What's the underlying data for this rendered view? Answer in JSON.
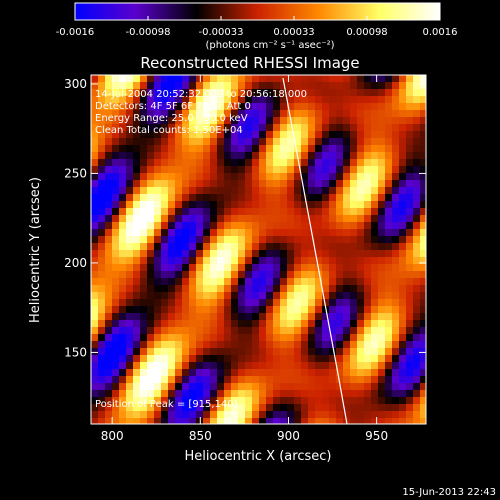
{
  "colorbar": {
    "ticks": [
      "-0.0016",
      "-0.00098",
      "-0.00033",
      "0.00033",
      "0.00098",
      "0.0016"
    ],
    "units_label": "(photons cm⁻² s⁻¹ asec⁻²)",
    "min_value": -0.0016,
    "max_value": 0.0016,
    "colormap": [
      "#0000ff",
      "#5a00cc",
      "#000000",
      "#cc2200",
      "#ff8800",
      "#ffff66",
      "#ffffff"
    ]
  },
  "plot": {
    "title": "Reconstructed RHESSI Image",
    "xlabel": "Heliocentric X (arcsec)",
    "ylabel": "Heliocentric Y (arcsec)",
    "xlim": [
      788,
      978
    ],
    "ylim": [
      110,
      305
    ],
    "xticks": [
      "800",
      "850",
      "900",
      "950"
    ],
    "yticks": [
      "150",
      "200",
      "250",
      "300"
    ],
    "info_lines": [
      "14-Jul-2004 20:52:32.000 to 20:56:18.000",
      "Detectors: 4F 5F 6F 7F 8F  Att 0",
      "Energy Range: 25.0 - 50.0 keV",
      "Clean    Total counts: 1.50E+04"
    ],
    "peak_text": "Position of Peak = [915,140]",
    "limb_line_color": "#ffffff"
  },
  "footer": {
    "timestamp": "15-Jun-2013 22:43"
  }
}
